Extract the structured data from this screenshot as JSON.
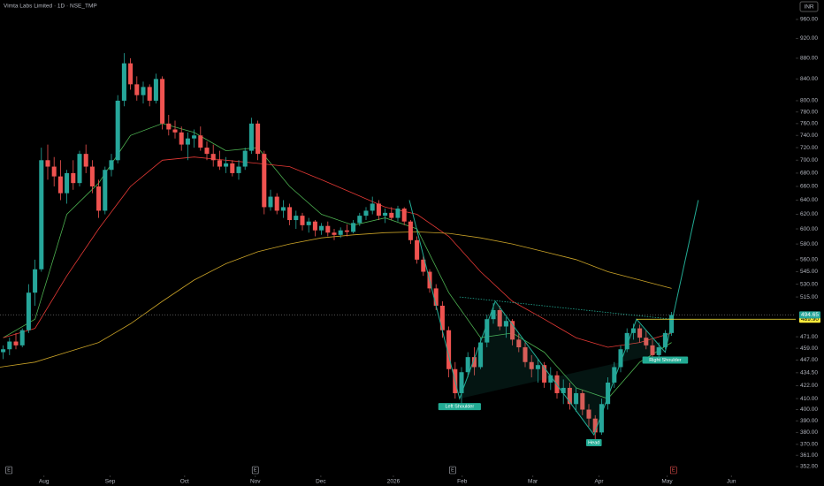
{
  "chart_data": {
    "type": "candlestick",
    "title": "Vimta Labs Limited · 1D · NSE_TMP",
    "currency": "INR",
    "log_scale": true,
    "up_color": "#26a69a",
    "down_color": "#ef5350",
    "ylim": [
      352,
      960
    ],
    "yticks": [
      {
        "value": 960,
        "label": "960.00"
      },
      {
        "value": 920,
        "label": "920.00"
      },
      {
        "value": 880,
        "label": "880.00"
      },
      {
        "value": 840,
        "label": "840.00"
      },
      {
        "value": 800,
        "label": "800.00"
      },
      {
        "value": 780,
        "label": "780.00"
      },
      {
        "value": 760,
        "label": "760.00"
      },
      {
        "value": 740,
        "label": "740.00"
      },
      {
        "value": 720,
        "label": "720.00"
      },
      {
        "value": 700,
        "label": "700.00"
      },
      {
        "value": 680,
        "label": "680.00"
      },
      {
        "value": 660,
        "label": "660.00"
      },
      {
        "value": 640,
        "label": "640.00"
      },
      {
        "value": 620,
        "label": "620.00"
      },
      {
        "value": 600,
        "label": "600.00"
      },
      {
        "value": 580,
        "label": "580.00"
      },
      {
        "value": 560,
        "label": "560.00"
      },
      {
        "value": 545,
        "label": "545.00"
      },
      {
        "value": 530,
        "label": "530.00"
      },
      {
        "value": 515,
        "label": "515.00"
      },
      {
        "value": 471,
        "label": "471.00"
      },
      {
        "value": 459,
        "label": "459.00"
      },
      {
        "value": 447,
        "label": "447.00"
      },
      {
        "value": 434.5,
        "label": "434.50"
      },
      {
        "value": 422,
        "label": "422.00"
      },
      {
        "value": 410,
        "label": "410.00"
      },
      {
        "value": 400,
        "label": "400.00"
      },
      {
        "value": 390,
        "label": "390.00"
      },
      {
        "value": 380,
        "label": "380.00"
      },
      {
        "value": 370,
        "label": "370.00"
      },
      {
        "value": 361,
        "label": "361.00"
      },
      {
        "value": 352,
        "label": "352.00"
      }
    ],
    "xlim": [
      -0.5,
      124.5
    ],
    "xticks": [
      {
        "value": 6.4,
        "label": "Aug"
      },
      {
        "value": 16.8,
        "label": "Sep"
      },
      {
        "value": 28.5,
        "label": "Oct"
      },
      {
        "value": 39.6,
        "label": "Nov"
      },
      {
        "value": 49.9,
        "label": "Dec"
      },
      {
        "value": 61.3,
        "label": "2026"
      },
      {
        "value": 72.1,
        "label": "Feb"
      },
      {
        "value": 83.2,
        "label": "Mar"
      },
      {
        "value": 93.6,
        "label": "Apr"
      },
      {
        "value": 104.3,
        "label": "May"
      },
      {
        "value": 114.4,
        "label": "Jun"
      }
    ],
    "values": [
      [
        455,
        462,
        448,
        458
      ],
      [
        458,
        470,
        452,
        466
      ],
      [
        466,
        475,
        458,
        462
      ],
      [
        462,
        480,
        460,
        478
      ],
      [
        478,
        530,
        475,
        520
      ],
      [
        520,
        560,
        505,
        548
      ],
      [
        548,
        720,
        545,
        700
      ],
      [
        700,
        725,
        670,
        690
      ],
      [
        690,
        705,
        660,
        675
      ],
      [
        675,
        700,
        640,
        650
      ],
      [
        650,
        685,
        635,
        680
      ],
      [
        680,
        700,
        655,
        665
      ],
      [
        665,
        715,
        660,
        710
      ],
      [
        710,
        725,
        680,
        690
      ],
      [
        690,
        700,
        650,
        660
      ],
      [
        660,
        670,
        615,
        625
      ],
      [
        625,
        690,
        620,
        685
      ],
      [
        685,
        710,
        675,
        700
      ],
      [
        700,
        810,
        695,
        800
      ],
      [
        800,
        890,
        790,
        870
      ],
      [
        870,
        880,
        820,
        830
      ],
      [
        830,
        845,
        800,
        810
      ],
      [
        810,
        835,
        795,
        825
      ],
      [
        825,
        830,
        790,
        800
      ],
      [
        800,
        850,
        795,
        840
      ],
      [
        840,
        845,
        750,
        760
      ],
      [
        760,
        775,
        740,
        750
      ],
      [
        750,
        765,
        735,
        745
      ],
      [
        745,
        755,
        715,
        725
      ],
      [
        725,
        745,
        700,
        735
      ],
      [
        735,
        750,
        720,
        740
      ],
      [
        740,
        755,
        715,
        720
      ],
      [
        720,
        730,
        700,
        710
      ],
      [
        710,
        725,
        690,
        700
      ],
      [
        700,
        715,
        685,
        690
      ],
      [
        690,
        705,
        680,
        695
      ],
      [
        695,
        700,
        675,
        680
      ],
      [
        680,
        700,
        670,
        690
      ],
      [
        690,
        720,
        685,
        715
      ],
      [
        715,
        770,
        710,
        760
      ],
      [
        760,
        765,
        700,
        710
      ],
      [
        710,
        715,
        620,
        630
      ],
      [
        630,
        655,
        625,
        645
      ],
      [
        645,
        650,
        620,
        625
      ],
      [
        625,
        640,
        615,
        630
      ],
      [
        630,
        635,
        605,
        612
      ],
      [
        612,
        625,
        600,
        618
      ],
      [
        618,
        622,
        598,
        605
      ],
      [
        605,
        615,
        595,
        610
      ],
      [
        610,
        612,
        590,
        598
      ],
      [
        598,
        608,
        592,
        604
      ],
      [
        604,
        610,
        590,
        595
      ],
      [
        595,
        600,
        585,
        592
      ],
      [
        592,
        602,
        588,
        598
      ],
      [
        598,
        606,
        590,
        596
      ],
      [
        596,
        612,
        594,
        608
      ],
      [
        608,
        622,
        604,
        618
      ],
      [
        618,
        630,
        612,
        625
      ],
      [
        625,
        645,
        620,
        635
      ],
      [
        635,
        640,
        612,
        618
      ],
      [
        618,
        628,
        608,
        622
      ],
      [
        622,
        630,
        612,
        615
      ],
      [
        615,
        632,
        610,
        628
      ],
      [
        628,
        630,
        605,
        610
      ],
      [
        610,
        612,
        580,
        585
      ],
      [
        585,
        590,
        555,
        560
      ],
      [
        560,
        565,
        540,
        545
      ],
      [
        545,
        548,
        520,
        525
      ],
      [
        525,
        530,
        500,
        505
      ],
      [
        505,
        510,
        470,
        478
      ],
      [
        478,
        482,
        430,
        438
      ],
      [
        438,
        445,
        410,
        415
      ],
      [
        415,
        440,
        405,
        435
      ],
      [
        435,
        455,
        430,
        450
      ],
      [
        450,
        460,
        432,
        440
      ],
      [
        440,
        470,
        438,
        465
      ],
      [
        465,
        495,
        460,
        490
      ],
      [
        490,
        508,
        485,
        500
      ],
      [
        500,
        505,
        478,
        482
      ],
      [
        482,
        492,
        470,
        488
      ],
      [
        488,
        490,
        462,
        468
      ],
      [
        468,
        475,
        455,
        460
      ],
      [
        460,
        465,
        440,
        445
      ],
      [
        445,
        452,
        430,
        438
      ],
      [
        438,
        448,
        425,
        442
      ],
      [
        442,
        445,
        420,
        425
      ],
      [
        425,
        440,
        418,
        432
      ],
      [
        432,
        436,
        410,
        415
      ],
      [
        415,
        428,
        405,
        420
      ],
      [
        420,
        425,
        400,
        405
      ],
      [
        405,
        420,
        398,
        415
      ],
      [
        415,
        418,
        395,
        400
      ],
      [
        400,
        405,
        385,
        392
      ],
      [
        392,
        395,
        372,
        380
      ],
      [
        380,
        410,
        378,
        405
      ],
      [
        405,
        430,
        400,
        425
      ],
      [
        425,
        445,
        420,
        440
      ],
      [
        440,
        462,
        435,
        458
      ],
      [
        458,
        480,
        455,
        475
      ],
      [
        475,
        485,
        468,
        480
      ],
      [
        480,
        484,
        465,
        470
      ],
      [
        470,
        478,
        458,
        462
      ],
      [
        462,
        468,
        448,
        452
      ],
      [
        452,
        465,
        446,
        460
      ],
      [
        460,
        478,
        458,
        475
      ],
      [
        475,
        498,
        472,
        494.65
      ]
    ],
    "overlays": [
      {
        "color": "#4caf50",
        "x": [
          0,
          5,
          10,
          15,
          20,
          25,
          30,
          35,
          40,
          45,
          50,
          55,
          60,
          65,
          70,
          75,
          80,
          85,
          90,
          95,
          100,
          105
        ],
        "values": [
          470,
          490,
          620,
          665,
          740,
          760,
          745,
          715,
          720,
          660,
          620,
          605,
          615,
          600,
          520,
          470,
          475,
          455,
          420,
          410,
          445,
          465
        ]
      },
      {
        "color": "#e53935",
        "x": [
          0,
          5,
          10,
          15,
          20,
          25,
          30,
          35,
          40,
          45,
          50,
          55,
          60,
          65,
          70,
          75,
          80,
          85,
          90,
          95,
          100,
          105
        ],
        "values": [
          470,
          480,
          540,
          600,
          660,
          700,
          705,
          700,
          695,
          690,
          670,
          650,
          630,
          620,
          590,
          545,
          510,
          490,
          470,
          460,
          465,
          475
        ]
      },
      {
        "color": "#c9a227",
        "x": [
          -0.5,
          5,
          10,
          15,
          20,
          25,
          30,
          35,
          40,
          45,
          50,
          55,
          60,
          65,
          70,
          75,
          80,
          85,
          90,
          95,
          100,
          105
        ],
        "values": [
          440,
          445,
          455,
          465,
          485,
          510,
          535,
          555,
          570,
          580,
          588,
          592,
          595,
          596,
          594,
          588,
          580,
          570,
          560,
          545,
          535,
          525
        ]
      }
    ],
    "pattern": {
      "color": "#22ab94",
      "x": [
        63.8,
        71.7,
        77.3,
        92.8,
        99.5,
        104,
        109.2
      ],
      "values": [
        640,
        410,
        510,
        378,
        490,
        455,
        640
      ],
      "point_labels": [
        null,
        "Left Shoulder",
        null,
        "Head",
        null,
        "Right Shoulder",
        null
      ],
      "neckline": {
        "x": [
          71.7,
          105
        ],
        "values": [
          515,
          490
        ]
      }
    },
    "last_price": {
      "value": 494.65,
      "color": "#26a69a"
    },
    "level": {
      "value": 489.9,
      "label": "489.90",
      "color": "#ffeb3b"
    },
    "events": [
      {
        "x": 0.9,
        "label": "E",
        "color": "#b2b5be"
      },
      {
        "x": 39.6,
        "label": "E",
        "color": "#b2b5be"
      },
      {
        "x": 70.6,
        "label": "E",
        "color": "#b2b5be"
      },
      {
        "x": 105.3,
        "label": "E",
        "color": "#ef5350"
      }
    ]
  }
}
